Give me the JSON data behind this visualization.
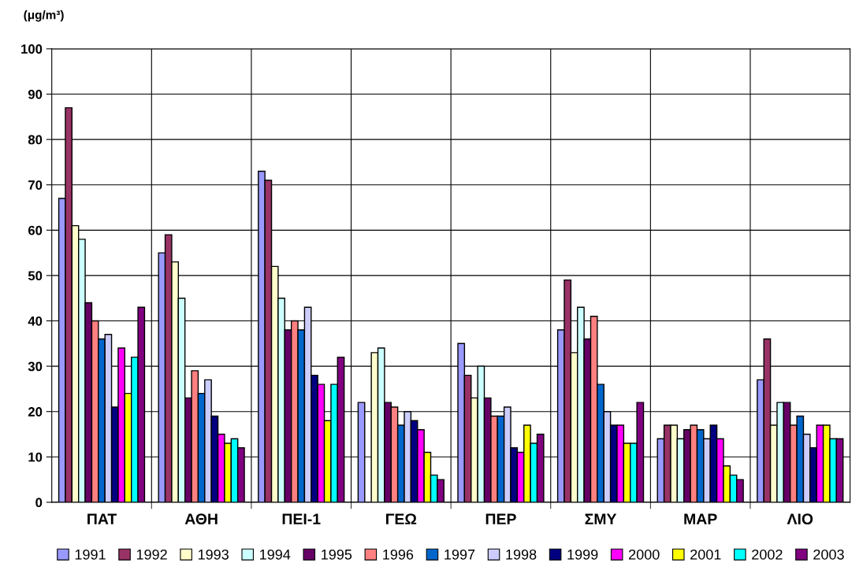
{
  "chart_data": {
    "type": "bar",
    "ylabel": "(μg/m³)",
    "categories": [
      "ΠΑΤ",
      "ΑΘΗ",
      "ΠΕΙ-1",
      "ΓΕΩ",
      "ΠΕΡ",
      "ΣΜΥ",
      "ΜΑΡ",
      "ΛΙΟ"
    ],
    "series": [
      {
        "name": "1991",
        "color": "#9999ff",
        "values": [
          67,
          55,
          73,
          22,
          35,
          38,
          14,
          27
        ]
      },
      {
        "name": "1992",
        "color": "#993366",
        "values": [
          87,
          59,
          71,
          null,
          28,
          49,
          17,
          36
        ]
      },
      {
        "name": "1993",
        "color": "#ffffcc",
        "values": [
          61,
          53,
          52,
          33,
          23,
          33,
          17,
          17
        ]
      },
      {
        "name": "1994",
        "color": "#ccffff",
        "values": [
          58,
          45,
          45,
          34,
          30,
          43,
          14,
          22
        ]
      },
      {
        "name": "1995",
        "color": "#660066",
        "values": [
          44,
          23,
          38,
          22,
          23,
          36,
          16,
          22
        ]
      },
      {
        "name": "1996",
        "color": "#ff8080",
        "values": [
          40,
          29,
          40,
          21,
          19,
          41,
          17,
          17
        ]
      },
      {
        "name": "1997",
        "color": "#0066cc",
        "values": [
          36,
          24,
          38,
          17,
          19,
          26,
          16,
          19
        ]
      },
      {
        "name": "1998",
        "color": "#ccccff",
        "values": [
          37,
          27,
          43,
          20,
          21,
          20,
          14,
          15
        ]
      },
      {
        "name": "1999",
        "color": "#000080",
        "values": [
          21,
          19,
          28,
          18,
          12,
          17,
          17,
          12
        ]
      },
      {
        "name": "2000",
        "color": "#ff00ff",
        "values": [
          34,
          15,
          26,
          16,
          11,
          17,
          14,
          17
        ]
      },
      {
        "name": "2001",
        "color": "#ffff00",
        "values": [
          24,
          13,
          18,
          11,
          17,
          13,
          8,
          17
        ]
      },
      {
        "name": "2002",
        "color": "#00ffff",
        "values": [
          32,
          14,
          26,
          6,
          13,
          13,
          6,
          14
        ]
      },
      {
        "name": "2003",
        "color": "#800080",
        "values": [
          43,
          12,
          32,
          5,
          15,
          22,
          5,
          14
        ]
      }
    ],
    "ylim": [
      0,
      100
    ],
    "yticks": [
      0,
      10,
      20,
      30,
      40,
      50,
      60,
      70,
      80,
      90,
      100
    ],
    "grid": true,
    "legend": "bottom"
  }
}
